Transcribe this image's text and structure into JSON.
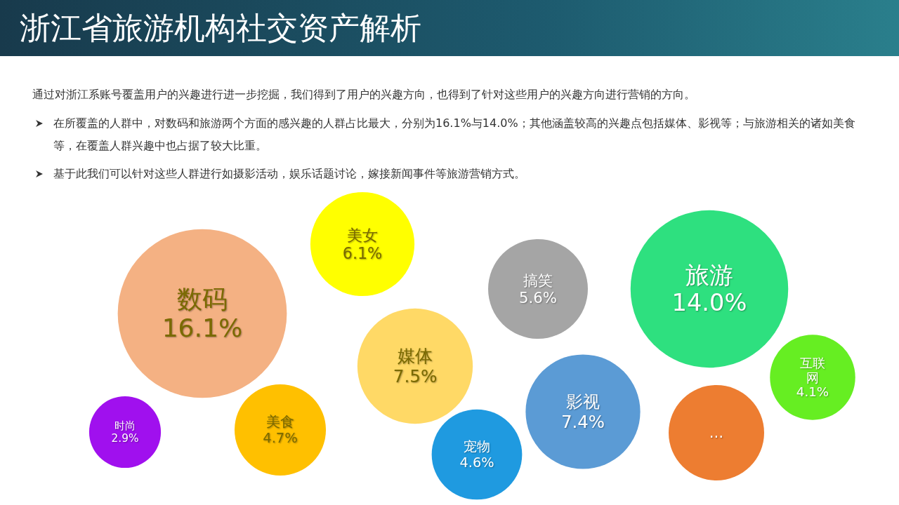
{
  "chart_data": {
    "type": "other",
    "title": "浙江省旅游机构社交资产解析",
    "subtitle": "通过对浙江系账号覆盖用户的兴趣进行进一步挖掘，我们得到了用户的兴趣方向，也得到了针对这些用户的兴趣方向进行营销的方向。",
    "annotations": [
      "在所覆盖的人群中，对数码和旅游两个方面的感兴趣的人群占比最大，分别为16.1%与14.0%；其他涵盖较高的兴趣点包括媒体、影视等；与旅游相关的诸如美食等，在覆盖人群兴趣中也占据了较大比重。",
      "基于此我们可以针对这些人群进行如摄影活动，娱乐话题讨论，嫁接新闻事件等旅游营销方式。"
    ],
    "categories": [
      "数码",
      "美女",
      "搞笑",
      "旅游",
      "媒体",
      "影视",
      "时尚",
      "美食",
      "宠物",
      "…",
      "互联网"
    ],
    "values": [
      16.1,
      6.1,
      5.6,
      14.0,
      7.5,
      7.4,
      2.9,
      4.7,
      4.6,
      null,
      4.1
    ],
    "value_labels": [
      "16.1%",
      "6.1%",
      "5.6%",
      "14.0%",
      "7.5%",
      "7.4%",
      "2.9%",
      "4.7%",
      "4.6%",
      null,
      "4.1%"
    ],
    "colors": [
      "#f4b183",
      "#ffff00",
      "#a5a5a5",
      "#2ee07f",
      "#ffd966",
      "#5b9bd5",
      "#a010ee",
      "#ffc000",
      "#1f9ae0",
      "#ed7d31",
      "#66ee22"
    ]
  }
}
